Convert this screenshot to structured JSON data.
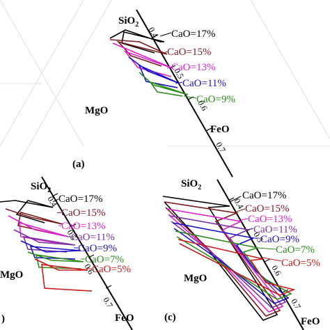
{
  "colors": {
    "cao17": "#000000",
    "cao15": "#7a1a1a",
    "cao13": "#e020d0",
    "cao11": "#1a10c8",
    "cao9": "#2a8a1a",
    "cao7": "#4a8a1a",
    "cao5": "#c81a1a",
    "axis": "#000000",
    "grid": "#cccccc"
  },
  "panel_a": {
    "label": "(a)",
    "apex_top": "SiO",
    "apex_sub": "2",
    "left": "MgO",
    "right": "FeO",
    "ticks": [
      "0.4",
      "0.5",
      "0.6",
      "0.7"
    ],
    "legend": [
      "CaO=17%",
      "CaO=15%",
      "CaO=13%",
      "CaO=11%",
      "CaO=9%"
    ]
  },
  "panel_b": {
    "label": ")",
    "apex_top": "SiO",
    "apex_sub": "2",
    "left": "MgO",
    "right": "FeO",
    "ticks": [
      "0.4",
      "0.5",
      "0.6",
      "0.7"
    ],
    "legend": [
      "CaO=17%",
      "CaO=15%",
      "CaO=13%",
      "CaO=11%",
      "CaO=9%",
      "CaO=7%",
      "CaO=5%"
    ]
  },
  "panel_c": {
    "label": "(c)",
    "apex_top": "SiO",
    "apex_sub": "2",
    "left": "MgO",
    "right": "FeO",
    "ticks": [
      "0.4",
      "0.5",
      "0.6",
      "0.7"
    ],
    "legend": [
      "CaO=17%",
      "CaO=15%",
      "CaO=13%",
      "CaO=11%",
      "CaO=9%",
      "CaO=7%",
      "CaO=5%"
    ]
  }
}
